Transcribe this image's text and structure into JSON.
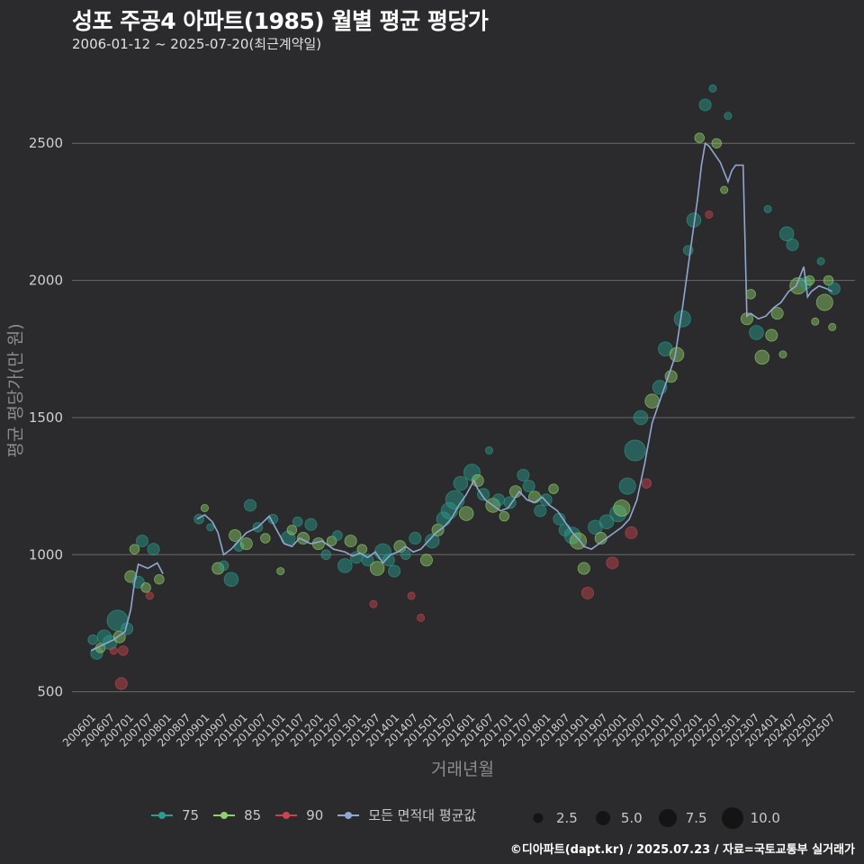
{
  "header": {
    "title": "성포 주공4 아파트(1985) 월별 평균 평당가",
    "subtitle": "2006-01-12 ~ 2025-07-20(최근계약일)"
  },
  "caption": "©디아파트(dapt.kr) / 2025.07.23 / 자료=국토교통부 실거래가",
  "colors": {
    "background": "#2b2b2d",
    "grid": "#6a6a6a",
    "s75": "#2a9d8f",
    "s85": "#8fd16a",
    "s90": "#c9454e",
    "avg": "#8fa8cf"
  },
  "chart_data": {
    "type": "scatter",
    "title": "성포 주공4 아파트(1985) 월별 평균 평당가",
    "xlabel": "거래년월",
    "ylabel": "평균 평당가(만 원)",
    "ylim": [
      430,
      2760
    ],
    "yticks": [
      500,
      1000,
      1500,
      2000,
      2500
    ],
    "xticks": [
      "200601",
      "200607",
      "200701",
      "200707",
      "200801",
      "200807",
      "200901",
      "200907",
      "201001",
      "201007",
      "201101",
      "201107",
      "201201",
      "201207",
      "201301",
      "201307",
      "201401",
      "201407",
      "201501",
      "201507",
      "201601",
      "201607",
      "201701",
      "201707",
      "201801",
      "201807",
      "201901",
      "201907",
      "202001",
      "202007",
      "202101",
      "202107",
      "202201",
      "202207",
      "202301",
      "202307",
      "202401",
      "202407",
      "202501",
      "202507"
    ],
    "legend": {
      "series": [
        {
          "name": "75",
          "color": "#2a9d8f"
        },
        {
          "name": "85",
          "color": "#8fd16a"
        },
        {
          "name": "90",
          "color": "#c9454e"
        },
        {
          "name": "모든 면적대 평균값",
          "color": "#8fa8cf"
        }
      ],
      "sizes": [
        "2.5",
        "5.0",
        "7.5",
        "10.0"
      ]
    },
    "avg_line": [
      [
        2006.0,
        650
      ],
      [
        2006.3,
        670
      ],
      [
        2006.6,
        690
      ],
      [
        2006.9,
        720
      ],
      [
        2007.05,
        800
      ],
      [
        2007.15,
        900
      ],
      [
        2007.25,
        965
      ],
      [
        2007.5,
        950
      ],
      [
        2007.75,
        970
      ],
      [
        2007.9,
        930
      ],
      [
        2008.8,
        1130
      ],
      [
        2009.0,
        1145
      ],
      [
        2009.2,
        1120
      ],
      [
        2009.35,
        1080
      ],
      [
        2009.5,
        1000
      ],
      [
        2009.7,
        1020
      ],
      [
        2009.9,
        1050
      ],
      [
        2010.1,
        1080
      ],
      [
        2010.4,
        1100
      ],
      [
        2010.7,
        1140
      ],
      [
        2010.9,
        1090
      ],
      [
        2011.1,
        1040
      ],
      [
        2011.3,
        1030
      ],
      [
        2011.5,
        1060
      ],
      [
        2011.8,
        1040
      ],
      [
        2012.1,
        1050
      ],
      [
        2012.4,
        1020
      ],
      [
        2012.7,
        1010
      ],
      [
        2012.9,
        995
      ],
      [
        2013.1,
        1005
      ],
      [
        2013.3,
        990
      ],
      [
        2013.5,
        1010
      ],
      [
        2013.7,
        970
      ],
      [
        2013.9,
        1000
      ],
      [
        2014.1,
        1010
      ],
      [
        2014.3,
        1030
      ],
      [
        2014.5,
        1010
      ],
      [
        2014.7,
        1020
      ],
      [
        2014.9,
        1050
      ],
      [
        2015.1,
        1080
      ],
      [
        2015.3,
        1100
      ],
      [
        2015.5,
        1130
      ],
      [
        2015.7,
        1180
      ],
      [
        2015.9,
        1220
      ],
      [
        2016.1,
        1270
      ],
      [
        2016.2,
        1240
      ],
      [
        2016.4,
        1200
      ],
      [
        2016.6,
        1180
      ],
      [
        2016.8,
        1160
      ],
      [
        2017.0,
        1170
      ],
      [
        2017.3,
        1230
      ],
      [
        2017.5,
        1200
      ],
      [
        2017.7,
        1190
      ],
      [
        2017.9,
        1210
      ],
      [
        2018.1,
        1180
      ],
      [
        2018.3,
        1160
      ],
      [
        2018.5,
        1120
      ],
      [
        2018.7,
        1080
      ],
      [
        2018.9,
        1050
      ],
      [
        2019.0,
        1030
      ],
      [
        2019.2,
        1020
      ],
      [
        2019.4,
        1040
      ],
      [
        2019.6,
        1060
      ],
      [
        2019.8,
        1080
      ],
      [
        2020.0,
        1100
      ],
      [
        2020.2,
        1130
      ],
      [
        2020.4,
        1200
      ],
      [
        2020.6,
        1330
      ],
      [
        2020.8,
        1480
      ],
      [
        2021.0,
        1560
      ],
      [
        2021.2,
        1640
      ],
      [
        2021.4,
        1720
      ],
      [
        2021.6,
        1900
      ],
      [
        2021.8,
        2100
      ],
      [
        2022.0,
        2300
      ],
      [
        2022.1,
        2420
      ],
      [
        2022.2,
        2500
      ],
      [
        2022.3,
        2490
      ],
      [
        2022.4,
        2470
      ],
      [
        2022.6,
        2430
      ],
      [
        2022.8,
        2360
      ],
      [
        2022.9,
        2400
      ],
      [
        2023.0,
        2420
      ],
      [
        2023.2,
        2420
      ],
      [
        2023.3,
        1870
      ],
      [
        2023.4,
        1880
      ],
      [
        2023.6,
        1860
      ],
      [
        2023.8,
        1870
      ],
      [
        2024.0,
        1900
      ],
      [
        2024.2,
        1920
      ],
      [
        2024.4,
        1960
      ],
      [
        2024.6,
        1980
      ],
      [
        2024.8,
        2050
      ],
      [
        2024.9,
        1940
      ],
      [
        2025.0,
        1960
      ],
      [
        2025.2,
        1980
      ],
      [
        2025.4,
        1970
      ],
      [
        2025.55,
        1960
      ]
    ],
    "points": [
      [
        2006.05,
        690,
        75,
        3
      ],
      [
        2006.15,
        640,
        75,
        4
      ],
      [
        2006.25,
        660,
        85,
        3
      ],
      [
        2006.35,
        700,
        75,
        5
      ],
      [
        2006.5,
        680,
        75,
        5
      ],
      [
        2006.6,
        650,
        90,
        2
      ],
      [
        2006.7,
        760,
        75,
        8
      ],
      [
        2006.75,
        700,
        85,
        4
      ],
      [
        2006.8,
        530,
        90,
        4
      ],
      [
        2006.85,
        650,
        90,
        3
      ],
      [
        2006.95,
        730,
        75,
        4
      ],
      [
        2007.05,
        920,
        85,
        4
      ],
      [
        2007.15,
        1020,
        85,
        3
      ],
      [
        2007.25,
        900,
        75,
        4
      ],
      [
        2007.35,
        1050,
        75,
        4
      ],
      [
        2007.45,
        880,
        85,
        3
      ],
      [
        2007.55,
        850,
        90,
        2
      ],
      [
        2007.65,
        1020,
        75,
        4
      ],
      [
        2007.8,
        910,
        85,
        3
      ],
      [
        2008.85,
        1130,
        75,
        3
      ],
      [
        2009.0,
        1170,
        85,
        2
      ],
      [
        2009.15,
        1100,
        75,
        2
      ],
      [
        2009.35,
        950,
        85,
        4
      ],
      [
        2009.5,
        960,
        75,
        3
      ],
      [
        2009.7,
        910,
        75,
        5
      ],
      [
        2009.8,
        1070,
        85,
        4
      ],
      [
        2009.9,
        1030,
        75,
        3
      ],
      [
        2010.1,
        1040,
        85,
        4
      ],
      [
        2010.2,
        1180,
        75,
        4
      ],
      [
        2010.4,
        1100,
        75,
        3
      ],
      [
        2010.6,
        1060,
        85,
        3
      ],
      [
        2010.8,
        1130,
        75,
        3
      ],
      [
        2011.0,
        940,
        85,
        2
      ],
      [
        2011.2,
        1060,
        75,
        5
      ],
      [
        2011.3,
        1090,
        85,
        3
      ],
      [
        2011.45,
        1120,
        75,
        3
      ],
      [
        2011.6,
        1060,
        85,
        4
      ],
      [
        2011.8,
        1110,
        75,
        4
      ],
      [
        2012.0,
        1040,
        85,
        4
      ],
      [
        2012.2,
        1000,
        75,
        3
      ],
      [
        2012.35,
        1050,
        85,
        3
      ],
      [
        2012.5,
        1070,
        75,
        3
      ],
      [
        2012.7,
        960,
        75,
        5
      ],
      [
        2012.85,
        1050,
        85,
        4
      ],
      [
        2013.0,
        990,
        75,
        4
      ],
      [
        2013.15,
        1020,
        85,
        3
      ],
      [
        2013.3,
        980,
        75,
        4
      ],
      [
        2013.45,
        820,
        90,
        2
      ],
      [
        2013.55,
        950,
        85,
        5
      ],
      [
        2013.7,
        1010,
        75,
        6
      ],
      [
        2013.85,
        980,
        75,
        4
      ],
      [
        2014.0,
        940,
        75,
        4
      ],
      [
        2014.15,
        1030,
        85,
        4
      ],
      [
        2014.3,
        1000,
        75,
        3
      ],
      [
        2014.45,
        850,
        90,
        2
      ],
      [
        2014.55,
        1060,
        75,
        4
      ],
      [
        2014.7,
        770,
        90,
        2
      ],
      [
        2014.85,
        980,
        85,
        4
      ],
      [
        2015.0,
        1050,
        75,
        5
      ],
      [
        2015.15,
        1090,
        85,
        4
      ],
      [
        2015.3,
        1130,
        75,
        5
      ],
      [
        2015.45,
        1160,
        75,
        6
      ],
      [
        2015.6,
        1200,
        75,
        7
      ],
      [
        2015.75,
        1260,
        75,
        5
      ],
      [
        2015.9,
        1150,
        85,
        5
      ],
      [
        2016.05,
        1300,
        75,
        6
      ],
      [
        2016.2,
        1270,
        85,
        4
      ],
      [
        2016.35,
        1220,
        75,
        4
      ],
      [
        2016.5,
        1380,
        75,
        2
      ],
      [
        2016.6,
        1180,
        85,
        5
      ],
      [
        2016.75,
        1200,
        75,
        4
      ],
      [
        2016.9,
        1140,
        85,
        3
      ],
      [
        2017.05,
        1190,
        75,
        4
      ],
      [
        2017.2,
        1230,
        85,
        4
      ],
      [
        2017.4,
        1290,
        75,
        4
      ],
      [
        2017.55,
        1250,
        75,
        4
      ],
      [
        2017.7,
        1210,
        85,
        4
      ],
      [
        2017.85,
        1160,
        75,
        4
      ],
      [
        2018.0,
        1200,
        75,
        4
      ],
      [
        2018.2,
        1240,
        85,
        3
      ],
      [
        2018.35,
        1130,
        75,
        4
      ],
      [
        2018.5,
        1090,
        75,
        4
      ],
      [
        2018.7,
        1070,
        75,
        6
      ],
      [
        2018.85,
        1050,
        85,
        6
      ],
      [
        2019.0,
        950,
        85,
        4
      ],
      [
        2019.1,
        860,
        90,
        4
      ],
      [
        2019.3,
        1100,
        75,
        5
      ],
      [
        2019.45,
        1060,
        85,
        4
      ],
      [
        2019.6,
        1120,
        75,
        5
      ],
      [
        2019.75,
        970,
        90,
        4
      ],
      [
        2019.9,
        1150,
        75,
        6
      ],
      [
        2020.0,
        1170,
        85,
        6
      ],
      [
        2020.15,
        1250,
        75,
        6
      ],
      [
        2020.25,
        1080,
        90,
        4
      ],
      [
        2020.35,
        1380,
        75,
        8
      ],
      [
        2020.5,
        1500,
        75,
        5
      ],
      [
        2020.65,
        1260,
        90,
        3
      ],
      [
        2020.8,
        1560,
        85,
        5
      ],
      [
        2021.0,
        1610,
        75,
        5
      ],
      [
        2021.15,
        1750,
        75,
        5
      ],
      [
        2021.3,
        1650,
        85,
        4
      ],
      [
        2021.45,
        1730,
        85,
        5
      ],
      [
        2021.6,
        1860,
        75,
        6
      ],
      [
        2021.75,
        2110,
        75,
        3
      ],
      [
        2021.9,
        2220,
        75,
        5
      ],
      [
        2022.05,
        2520,
        85,
        3
      ],
      [
        2022.2,
        2640,
        75,
        4
      ],
      [
        2022.3,
        2240,
        90,
        2
      ],
      [
        2022.4,
        2700,
        75,
        2
      ],
      [
        2022.5,
        2500,
        85,
        3
      ],
      [
        2022.7,
        2330,
        85,
        2
      ],
      [
        2022.8,
        2600,
        75,
        2
      ],
      [
        2023.3,
        1860,
        85,
        4
      ],
      [
        2023.4,
        1950,
        85,
        3
      ],
      [
        2023.55,
        1810,
        75,
        5
      ],
      [
        2023.7,
        1720,
        85,
        5
      ],
      [
        2023.85,
        2260,
        75,
        2
      ],
      [
        2023.95,
        1800,
        85,
        4
      ],
      [
        2024.1,
        1880,
        85,
        4
      ],
      [
        2024.25,
        1730,
        85,
        2
      ],
      [
        2024.35,
        2170,
        75,
        5
      ],
      [
        2024.5,
        2130,
        75,
        4
      ],
      [
        2024.65,
        1980,
        85,
        6
      ],
      [
        2024.85,
        1990,
        75,
        4
      ],
      [
        2024.95,
        2000,
        85,
        3
      ],
      [
        2025.1,
        1850,
        85,
        2
      ],
      [
        2025.25,
        2070,
        75,
        2
      ],
      [
        2025.35,
        1920,
        85,
        6
      ],
      [
        2025.45,
        2000,
        85,
        3
      ],
      [
        2025.55,
        1830,
        85,
        2
      ],
      [
        2025.6,
        1970,
        75,
        4
      ]
    ]
  }
}
